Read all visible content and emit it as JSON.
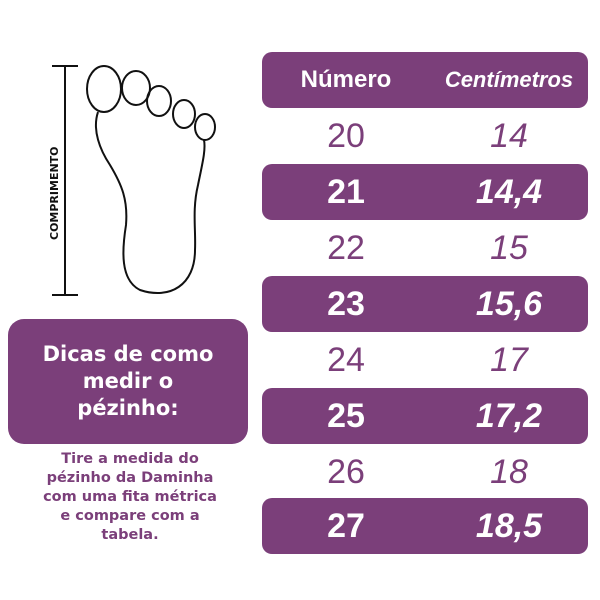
{
  "diagram": {
    "measure_label": "COMPRIMENTO"
  },
  "table": {
    "headers": {
      "number": "Número",
      "centimeters": "Centímetros"
    },
    "rows": [
      {
        "number": "20",
        "cm": "14"
      },
      {
        "number": "21",
        "cm": "14,4"
      },
      {
        "number": "22",
        "cm": "15"
      },
      {
        "number": "23",
        "cm": "15,6"
      },
      {
        "number": "24",
        "cm": "17"
      },
      {
        "number": "25",
        "cm": "17,2"
      },
      {
        "number": "26",
        "cm": "18"
      },
      {
        "number": "27",
        "cm": "18,5"
      }
    ]
  },
  "tips": {
    "title": "Dicas de como medir o pézinho:",
    "body": "Tire a medida do pézinho da Daminha com uma fita métrica e compare com a tabela."
  },
  "colors": {
    "accent": "#7b3f7a"
  }
}
